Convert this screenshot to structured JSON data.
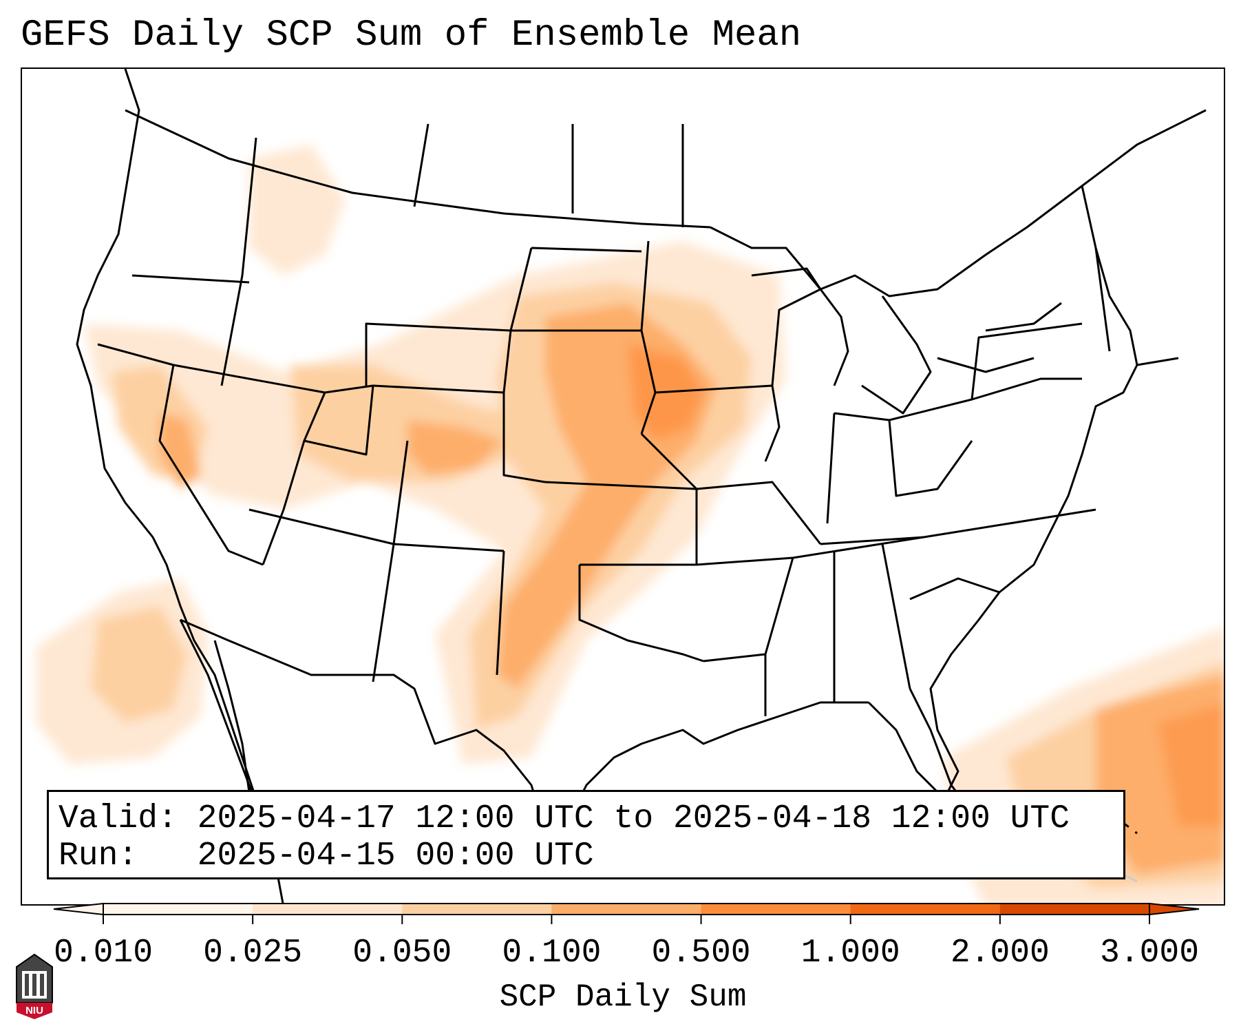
{
  "title": "GEFS Daily SCP Sum of Ensemble Mean",
  "info": {
    "valid_line": "Valid: 2025-04-17 12:00 UTC to 2025-04-18 12:00 UTC",
    "run_line": "Run:   2025-04-15 00:00 UTC"
  },
  "colorbar": {
    "label": "SCP Daily Sum",
    "ticks": [
      "0.010",
      "0.025",
      "0.050",
      "0.100",
      "0.500",
      "1.000",
      "2.000",
      "3.000"
    ],
    "colors": [
      "#fff5eb",
      "#fee6ce",
      "#fdd0a2",
      "#fdae6b",
      "#fd8d3c",
      "#f16913",
      "#d94801"
    ],
    "extend_both": true
  },
  "map": {
    "projection": "lambert-conformal",
    "region": "CONUS",
    "field": "SCP daily sum",
    "features": [
      "state-borders",
      "coastlines",
      "country-borders"
    ]
  },
  "logo": {
    "text": "NIU",
    "icon": "university-building-icon"
  }
}
